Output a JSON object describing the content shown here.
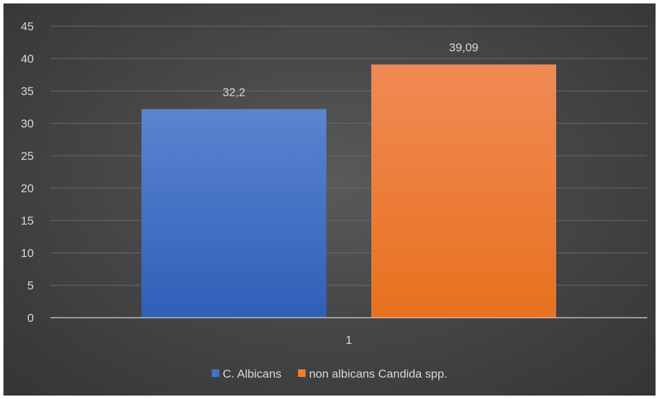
{
  "chart_data": {
    "type": "bar",
    "categories": [
      "1"
    ],
    "series": [
      {
        "name": "C. Albicans",
        "values": [
          32.2
        ],
        "label": "32,2",
        "color": "#4472c4"
      },
      {
        "name": "non albicans Candida spp.",
        "values": [
          39.09
        ],
        "label": "39,09",
        "color": "#ed7d31"
      }
    ],
    "ylim": [
      0,
      45
    ],
    "y_ticks": [
      "0",
      "5",
      "10",
      "15",
      "20",
      "25",
      "30",
      "35",
      "40",
      "45"
    ],
    "grid": true,
    "legend_position": "bottom",
    "title": "",
    "xlabel": "",
    "ylabel": ""
  }
}
